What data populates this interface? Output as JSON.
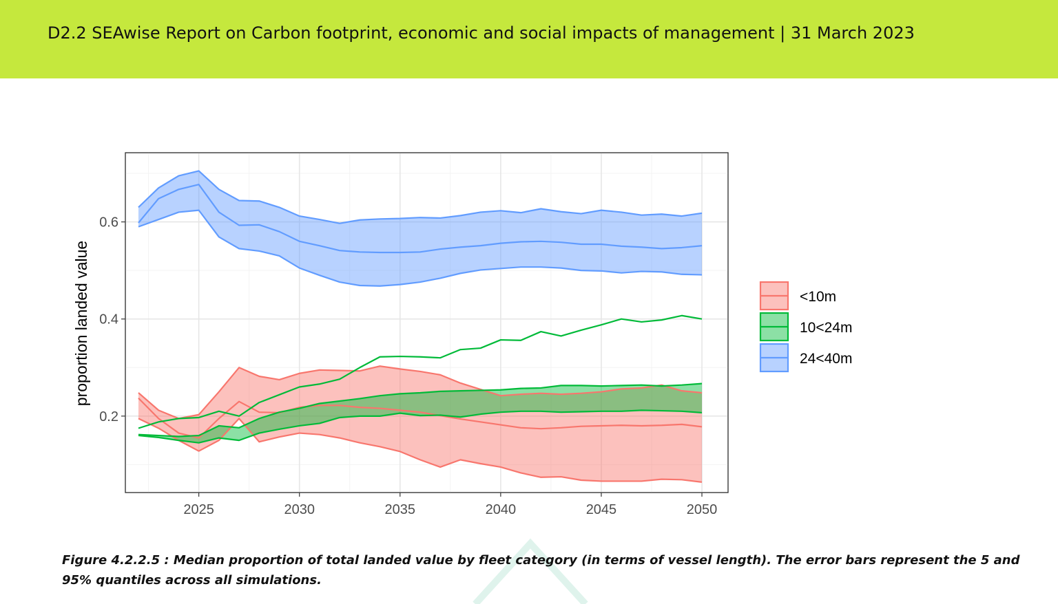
{
  "header": {
    "title": "D2.2 SEAwise Report on Carbon footprint, economic and social impacts of management | 31 March 2023"
  },
  "colors": {
    "header_bg": "#c5e83d",
    "lt10_line": "#f8766d",
    "lt10_fill": "#f8766d",
    "mid_line": "#00ba38",
    "mid_fill": "#00ba38",
    "large_line": "#619cff",
    "large_fill": "#619cff"
  },
  "chart_data": {
    "type": "area",
    "ylabel": "proportion landed value",
    "xlabel": "",
    "xlim": [
      2021.35,
      2051.3
    ],
    "ylim": [
      0.0425,
      0.7425
    ],
    "x_ticks": [
      2025,
      2030,
      2035,
      2040,
      2045,
      2050
    ],
    "y_ticks": [
      0.2,
      0.4,
      0.6
    ],
    "grid": true,
    "legend_position": "right",
    "x": [
      2022,
      2023,
      2024,
      2025,
      2026,
      2027,
      2028,
      2029,
      2030,
      2031,
      2032,
      2033,
      2034,
      2035,
      2036,
      2037,
      2038,
      2039,
      2040,
      2041,
      2042,
      2043,
      2044,
      2045,
      2046,
      2047,
      2048,
      2049,
      2050
    ],
    "series": [
      {
        "name": "<10m",
        "color_key": "lt10_line",
        "median": [
          0.237,
          0.195,
          0.165,
          0.155,
          0.195,
          0.23,
          0.208,
          0.207,
          0.218,
          0.222,
          0.222,
          0.218,
          0.216,
          0.212,
          0.208,
          0.201,
          0.194,
          0.188,
          0.182,
          0.176,
          0.174,
          0.176,
          0.179,
          0.18,
          0.181,
          0.18,
          0.181,
          0.183,
          0.178
        ],
        "lower": [
          0.195,
          0.175,
          0.15,
          0.128,
          0.15,
          0.195,
          0.147,
          0.157,
          0.165,
          0.162,
          0.155,
          0.145,
          0.137,
          0.127,
          0.11,
          0.095,
          0.11,
          0.102,
          0.095,
          0.083,
          0.074,
          0.075,
          0.068,
          0.066,
          0.066,
          0.066,
          0.07,
          0.069,
          0.064
        ],
        "upper": [
          0.248,
          0.212,
          0.195,
          0.203,
          0.25,
          0.3,
          0.282,
          0.275,
          0.288,
          0.295,
          0.294,
          0.293,
          0.303,
          0.297,
          0.292,
          0.285,
          0.268,
          0.255,
          0.242,
          0.245,
          0.247,
          0.245,
          0.247,
          0.25,
          0.256,
          0.258,
          0.264,
          0.252,
          0.248
        ]
      },
      {
        "name": "10<24m",
        "color_key": "mid_line",
        "median": [
          0.175,
          0.188,
          0.195,
          0.197,
          0.21,
          0.2,
          0.228,
          0.244,
          0.26,
          0.266,
          0.276,
          0.3,
          0.322,
          0.323,
          0.322,
          0.32,
          0.337,
          0.34,
          0.357,
          0.356,
          0.374,
          0.365,
          0.377,
          0.388,
          0.4,
          0.394,
          0.398,
          0.407,
          0.4
        ],
        "lower": [
          0.16,
          0.156,
          0.15,
          0.145,
          0.155,
          0.15,
          0.165,
          0.173,
          0.18,
          0.185,
          0.197,
          0.2,
          0.2,
          0.206,
          0.201,
          0.202,
          0.198,
          0.204,
          0.208,
          0.21,
          0.21,
          0.208,
          0.209,
          0.21,
          0.21,
          0.212,
          0.211,
          0.21,
          0.207
        ],
        "upper": [
          0.162,
          0.16,
          0.158,
          0.16,
          0.18,
          0.176,
          0.195,
          0.208,
          0.216,
          0.226,
          0.231,
          0.236,
          0.242,
          0.246,
          0.248,
          0.251,
          0.252,
          0.253,
          0.254,
          0.257,
          0.258,
          0.263,
          0.263,
          0.262,
          0.263,
          0.264,
          0.262,
          0.264,
          0.267
        ]
      },
      {
        "name": "24<40m",
        "color_key": "large_line",
        "median": [
          0.598,
          0.648,
          0.667,
          0.677,
          0.62,
          0.593,
          0.594,
          0.58,
          0.56,
          0.551,
          0.541,
          0.538,
          0.537,
          0.537,
          0.538,
          0.544,
          0.548,
          0.551,
          0.556,
          0.559,
          0.56,
          0.558,
          0.554,
          0.554,
          0.55,
          0.548,
          0.545,
          0.547,
          0.551
        ],
        "lower": [
          0.59,
          0.605,
          0.62,
          0.624,
          0.569,
          0.545,
          0.54,
          0.53,
          0.505,
          0.49,
          0.476,
          0.469,
          0.468,
          0.471,
          0.476,
          0.484,
          0.494,
          0.501,
          0.504,
          0.507,
          0.507,
          0.505,
          0.5,
          0.499,
          0.495,
          0.498,
          0.497,
          0.492,
          0.491
        ],
        "upper": [
          0.63,
          0.67,
          0.695,
          0.705,
          0.667,
          0.644,
          0.643,
          0.63,
          0.612,
          0.605,
          0.597,
          0.604,
          0.606,
          0.607,
          0.609,
          0.608,
          0.613,
          0.62,
          0.623,
          0.619,
          0.627,
          0.621,
          0.617,
          0.624,
          0.62,
          0.614,
          0.616,
          0.612,
          0.618
        ]
      }
    ]
  },
  "caption": {
    "text": "Figure 4.2.2.5  : Median proportion of total landed value by fleet category (in terms of vessel length). The error bars represent the 5 and 95% quantiles across all simulations."
  }
}
